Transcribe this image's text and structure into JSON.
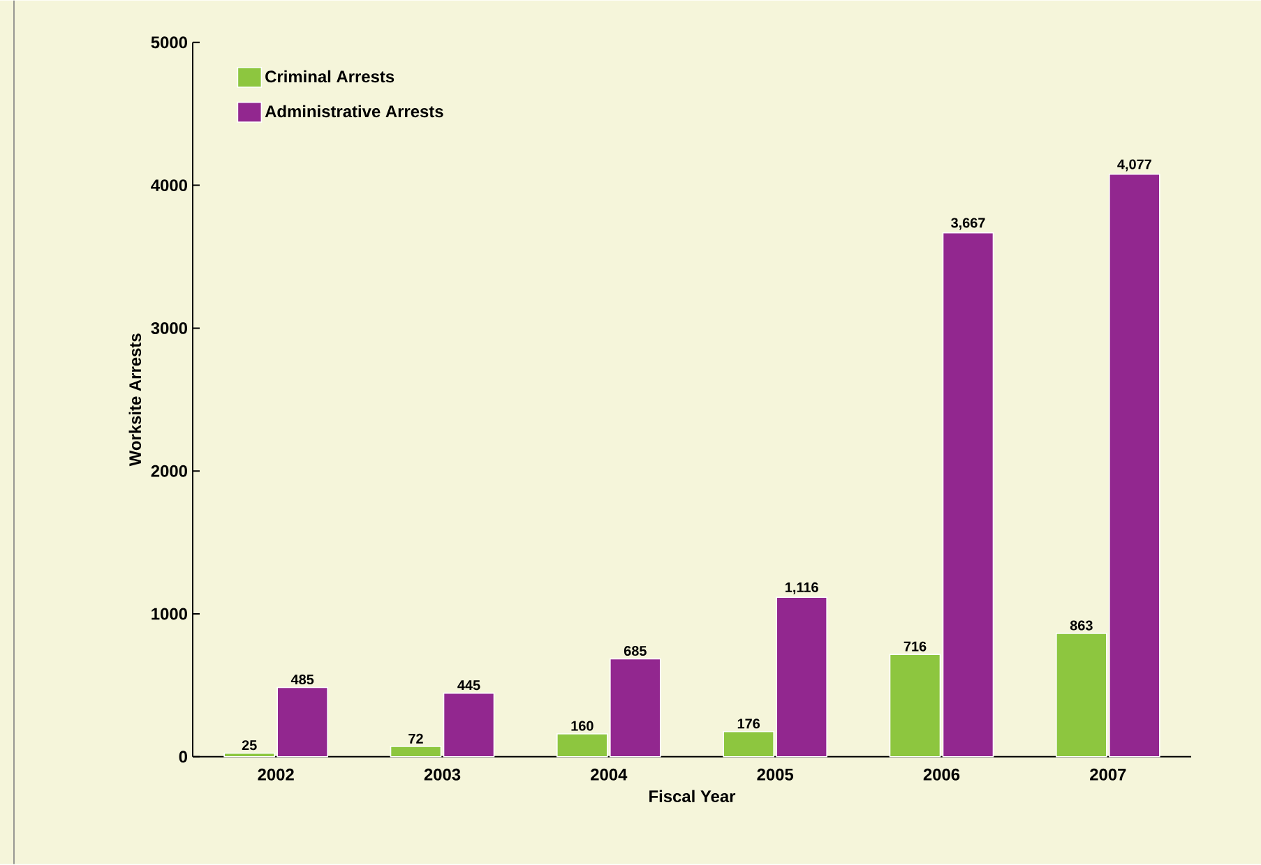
{
  "chart_data": {
    "type": "bar",
    "xlabel": "Fiscal Year",
    "ylabel": "Worksite Arrests",
    "categories": [
      "2002",
      "2003",
      "2004",
      "2005",
      "2006",
      "2007"
    ],
    "series": [
      {
        "name": "Criminal Arrests",
        "color": "#8dc63f",
        "values": [
          25,
          72,
          160,
          176,
          716,
          863
        ],
        "value_labels": [
          "25",
          "72",
          "160",
          "176",
          "716",
          "863"
        ]
      },
      {
        "name": "Administrative Arrests",
        "color": "#92278f",
        "values": [
          485,
          445,
          685,
          1116,
          3667,
          4077
        ],
        "value_labels": [
          "485",
          "445",
          "685",
          "1,116",
          "3,667",
          "4,077"
        ]
      }
    ],
    "ylim": [
      0,
      5000
    ],
    "yticks": [
      0,
      1000,
      2000,
      3000,
      4000,
      5000
    ],
    "grid": false,
    "legend": "top left"
  }
}
